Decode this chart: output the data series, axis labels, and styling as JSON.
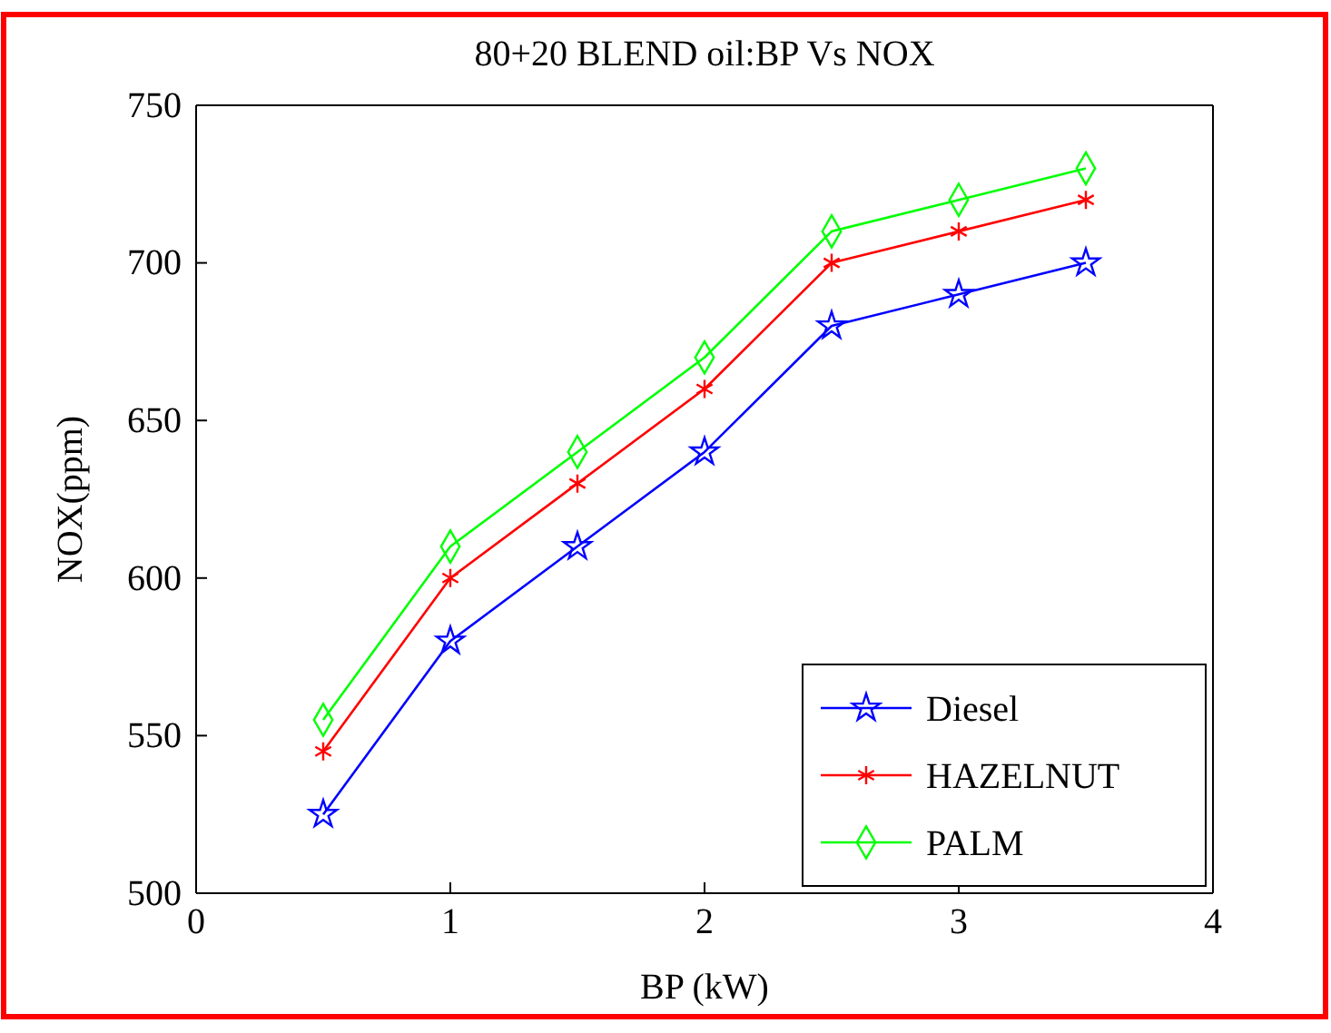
{
  "chart_data": {
    "type": "line",
    "title": "80+20 BLEND oil:BP Vs NOX",
    "xlabel": "BP (kW)",
    "ylabel": "NOX(ppm)",
    "x": [
      0.5,
      1,
      1.5,
      2,
      2.5,
      3,
      3.5
    ],
    "xlim": [
      0,
      4
    ],
    "xticks": [
      0,
      1,
      2,
      3,
      4
    ],
    "ylim": [
      500,
      750
    ],
    "yticks": [
      500,
      550,
      600,
      650,
      700,
      750
    ],
    "grid": false,
    "legend": "bottom right",
    "line_style": "solid",
    "series": [
      {
        "name": "Diesel",
        "color": "#0000ff",
        "marker": "star",
        "values": [
          525,
          580,
          610,
          640,
          680,
          690,
          700
        ]
      },
      {
        "name": "HAZELNUT",
        "color": "#ff0000",
        "marker": "cross",
        "values": [
          545,
          600,
          630,
          660,
          700,
          710,
          720
        ]
      },
      {
        "name": "PALM",
        "color": "#00ff00",
        "marker": "diamond",
        "values": [
          555,
          610,
          640,
          670,
          710,
          720,
          730
        ]
      }
    ]
  }
}
